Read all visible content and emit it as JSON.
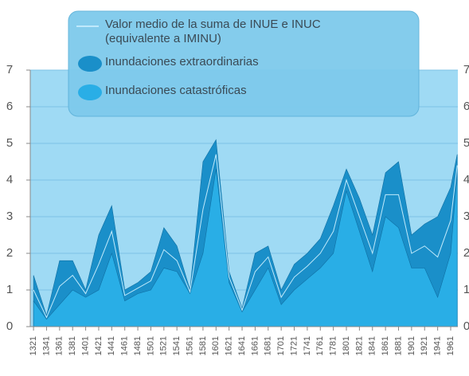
{
  "chart_data": {
    "type": "area",
    "x": [
      1321,
      1341,
      1361,
      1381,
      1401,
      1421,
      1441,
      1461,
      1481,
      1501,
      1521,
      1541,
      1561,
      1581,
      1601,
      1621,
      1641,
      1661,
      1681,
      1701,
      1721,
      1741,
      1761,
      1781,
      1801,
      1821,
      1841,
      1861,
      1881,
      1901,
      1921,
      1941,
      1961,
      1971
    ],
    "series": [
      {
        "name": "Valor medio de la suma de INUE e INUC (equivalente a IMINU)",
        "color": "#bfe9fb",
        "values": [
          1.0,
          0.25,
          1.1,
          1.4,
          0.9,
          1.7,
          2.6,
          0.85,
          1.05,
          1.25,
          2.1,
          1.8,
          0.95,
          3.2,
          4.7,
          1.35,
          0.45,
          1.5,
          1.9,
          0.8,
          1.35,
          1.65,
          2.0,
          2.6,
          4.0,
          3.0,
          2.0,
          3.6,
          3.6,
          2.0,
          2.2,
          1.9,
          2.9,
          4.4
        ]
      },
      {
        "name": "Inundaciones extraordinarias",
        "color": "#1a8fc9",
        "values": [
          1.4,
          0.3,
          1.8,
          1.8,
          1.0,
          2.5,
          3.3,
          1.0,
          1.2,
          1.5,
          2.7,
          2.2,
          1.0,
          4.5,
          5.1,
          1.5,
          0.5,
          2.0,
          2.2,
          1.0,
          1.7,
          2.0,
          2.4,
          3.3,
          4.3,
          3.5,
          2.5,
          4.2,
          4.5,
          2.5,
          2.8,
          3.0,
          3.8,
          4.7
        ]
      },
      {
        "name": "Inundaciones catastróficas",
        "color": "#29aee6",
        "values": [
          0.7,
          0.2,
          0.6,
          1.0,
          0.8,
          1.0,
          2.0,
          0.7,
          0.9,
          1.0,
          1.6,
          1.5,
          0.9,
          2.0,
          4.3,
          1.2,
          0.4,
          1.0,
          1.6,
          0.6,
          1.0,
          1.3,
          1.6,
          2.0,
          3.7,
          2.6,
          1.5,
          3.0,
          2.7,
          1.6,
          1.6,
          0.8,
          2.0,
          4.2
        ]
      }
    ],
    "xlim": [
      1316,
      1972
    ],
    "xticks": [
      1321,
      1341,
      1361,
      1381,
      1401,
      1421,
      1441,
      1461,
      1481,
      1501,
      1521,
      1541,
      1561,
      1581,
      1601,
      1621,
      1641,
      1661,
      1681,
      1701,
      1721,
      1741,
      1761,
      1781,
      1801,
      1821,
      1841,
      1861,
      1881,
      1901,
      1921,
      1941,
      1961
    ],
    "ylim": [
      0,
      7
    ],
    "yticks": [
      0,
      1,
      2,
      3,
      4,
      5,
      6,
      7
    ],
    "grid": true
  }
}
